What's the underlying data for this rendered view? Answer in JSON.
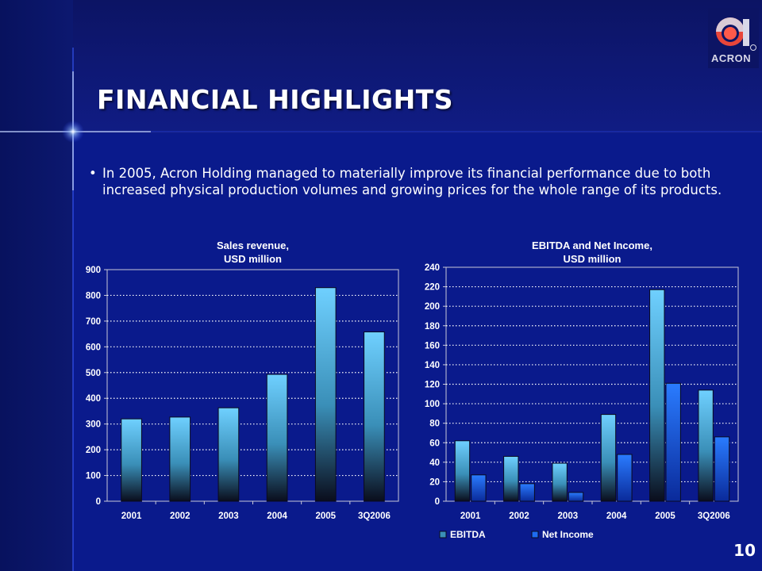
{
  "slide": {
    "title": "FINANCIAL HIGHLIGHTS",
    "bullet_text": "In 2005, Acron Holding managed to materially improve its financial performance due to both increased physical production volumes and growing prices for the whole range of its products.",
    "page_number": "10",
    "logo_text": "ACRON"
  },
  "colors": {
    "background": "#0a1a8c",
    "bar_light": "#6fd0ff",
    "bar_dark": "#0a0d1c",
    "net_income_blue": "#1e6cf0"
  },
  "chart_data": [
    {
      "type": "bar",
      "title": "Sales revenue,\nUSD million",
      "title_lines": [
        "Sales revenue,",
        "USD million"
      ],
      "categories": [
        "2001",
        "2002",
        "2003",
        "2004",
        "2005",
        "3Q2006"
      ],
      "values": [
        320,
        327,
        363,
        493,
        830,
        658
      ],
      "ylim": [
        0,
        900
      ],
      "yticks": [
        0,
        100,
        200,
        300,
        400,
        500,
        600,
        700,
        800,
        900
      ],
      "grid": "dotted horizontal",
      "legend": "none"
    },
    {
      "type": "bar",
      "title": "EBITDA and Net Income,\nUSD million",
      "title_lines": [
        "EBITDA and Net Income,",
        "USD million"
      ],
      "categories": [
        "2001",
        "2002",
        "2003",
        "2004",
        "2005",
        "3Q2006"
      ],
      "series": [
        {
          "name": "EBITDA",
          "values": [
            62,
            46,
            39,
            89,
            217,
            114
          ]
        },
        {
          "name": "Net Income",
          "values": [
            27,
            18,
            9,
            48,
            121,
            66
          ]
        }
      ],
      "ylim": [
        0,
        240
      ],
      "yticks": [
        0,
        20,
        40,
        60,
        80,
        100,
        120,
        140,
        160,
        180,
        200,
        220,
        240
      ],
      "grid": "dotted horizontal",
      "legend": "bottom"
    }
  ]
}
